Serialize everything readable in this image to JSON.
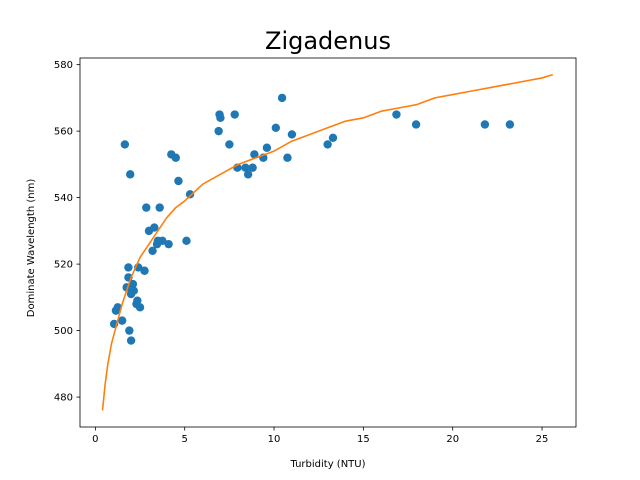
{
  "chart_data": {
    "type": "scatter",
    "title": "Zigadenus",
    "xlabel": "Turbidity (NTU)",
    "ylabel": "Dominate Wavelength (nm)",
    "xlim": [
      -0.86,
      26.9
    ],
    "ylim": [
      471,
      582
    ],
    "xticks": [
      0,
      5,
      10,
      15,
      20,
      25
    ],
    "yticks": [
      480,
      500,
      520,
      540,
      560,
      580
    ],
    "grid": false,
    "colors": {
      "scatter": "#1f77b4",
      "fit": "#ff7f0e"
    },
    "series": [
      {
        "kind": "scatter",
        "points": [
          [
            1.05,
            502
          ],
          [
            1.15,
            506
          ],
          [
            1.25,
            507
          ],
          [
            1.5,
            503
          ],
          [
            1.65,
            556
          ],
          [
            1.75,
            513
          ],
          [
            1.85,
            519
          ],
          [
            1.85,
            516
          ],
          [
            1.9,
            500
          ],
          [
            1.95,
            547
          ],
          [
            2.0,
            511
          ],
          [
            2.0,
            497
          ],
          [
            2.1,
            514
          ],
          [
            2.15,
            512
          ],
          [
            2.3,
            508
          ],
          [
            2.35,
            509
          ],
          [
            2.4,
            519
          ],
          [
            2.5,
            507
          ],
          [
            2.75,
            518
          ],
          [
            2.85,
            537
          ],
          [
            3.0,
            530
          ],
          [
            3.2,
            524
          ],
          [
            3.3,
            531
          ],
          [
            3.45,
            526
          ],
          [
            3.5,
            527
          ],
          [
            3.6,
            537
          ],
          [
            3.75,
            527
          ],
          [
            4.1,
            526
          ],
          [
            4.25,
            553
          ],
          [
            4.5,
            552
          ],
          [
            4.65,
            545
          ],
          [
            5.1,
            527
          ],
          [
            5.3,
            541
          ],
          [
            6.9,
            560
          ],
          [
            6.95,
            565
          ],
          [
            7.0,
            564
          ],
          [
            7.5,
            556
          ],
          [
            7.8,
            565
          ],
          [
            7.95,
            549
          ],
          [
            8.4,
            549
          ],
          [
            8.55,
            547
          ],
          [
            8.8,
            549
          ],
          [
            8.9,
            553
          ],
          [
            9.4,
            552
          ],
          [
            9.6,
            555
          ],
          [
            10.1,
            561
          ],
          [
            10.45,
            570
          ],
          [
            10.75,
            552
          ],
          [
            11.0,
            559
          ],
          [
            13.0,
            556
          ],
          [
            13.3,
            558
          ],
          [
            16.85,
            565
          ],
          [
            17.95,
            562
          ],
          [
            21.8,
            562
          ],
          [
            23.2,
            562
          ]
        ]
      },
      {
        "kind": "line",
        "points": [
          [
            0.4,
            476
          ],
          [
            0.55,
            484
          ],
          [
            0.7,
            490
          ],
          [
            0.9,
            496
          ],
          [
            1.1,
            500
          ],
          [
            1.3,
            504
          ],
          [
            1.5,
            508
          ],
          [
            1.75,
            512
          ],
          [
            2.0,
            516
          ],
          [
            2.5,
            522
          ],
          [
            3.0,
            526
          ],
          [
            3.5,
            530
          ],
          [
            4.0,
            534
          ],
          [
            4.5,
            537
          ],
          [
            5.0,
            539
          ],
          [
            6.0,
            544
          ],
          [
            7.0,
            547
          ],
          [
            8.0,
            550
          ],
          [
            9.0,
            552
          ],
          [
            10.0,
            554
          ],
          [
            11.0,
            557
          ],
          [
            12.0,
            559
          ],
          [
            13.0,
            561
          ],
          [
            14.0,
            563
          ],
          [
            15.0,
            564
          ],
          [
            16.0,
            566
          ],
          [
            17.0,
            567
          ],
          [
            18.0,
            568
          ],
          [
            19.0,
            570
          ],
          [
            20.0,
            571
          ],
          [
            21.0,
            572
          ],
          [
            22.0,
            573
          ],
          [
            23.0,
            574
          ],
          [
            24.0,
            575
          ],
          [
            25.0,
            576
          ],
          [
            25.6,
            577
          ]
        ]
      }
    ]
  }
}
